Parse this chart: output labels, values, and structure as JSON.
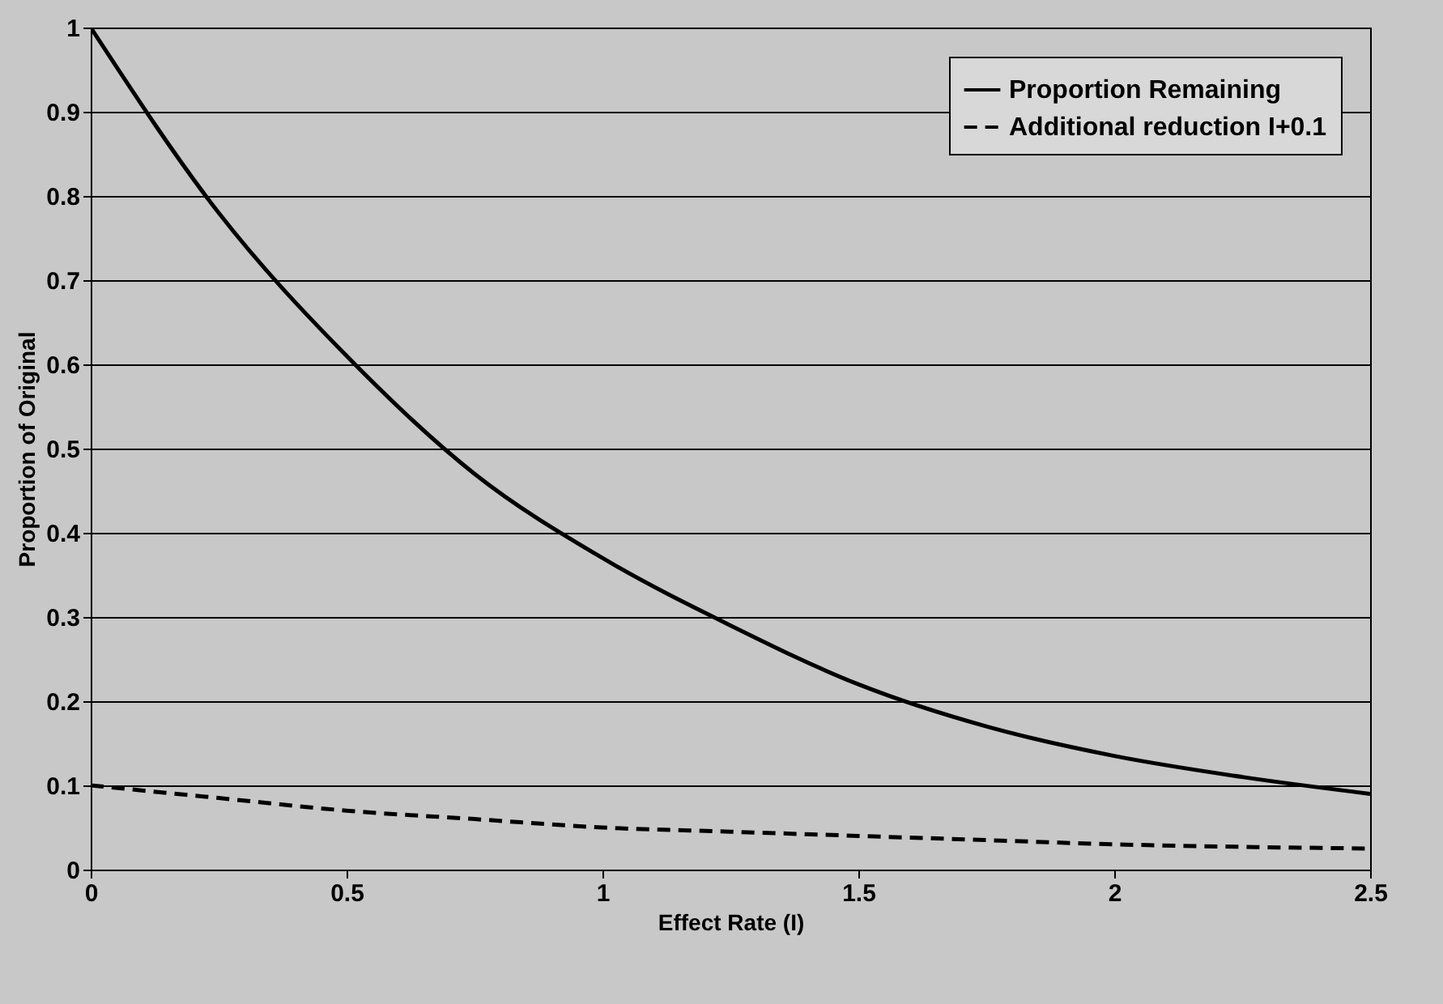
{
  "chart_data": {
    "type": "line",
    "xlabel": "Effect Rate (I)",
    "ylabel": "Proportion of Original",
    "x": [
      0,
      0.25,
      0.5,
      0.75,
      1,
      1.25,
      1.5,
      1.75,
      2,
      2.25,
      2.5
    ],
    "series": [
      {
        "name": "Proportion Remaining",
        "color": "#000000",
        "line_style": "solid",
        "values": [
          1,
          0.78,
          0.61,
          0.47,
          0.37,
          0.29,
          0.22,
          0.17,
          0.135,
          0.11,
          0.09
        ]
      },
      {
        "name": "Additional reduction I+0.1",
        "color": "#000000",
        "line_style": "dashed",
        "values": [
          0.1,
          0.085,
          0.07,
          0.06,
          0.05,
          0.045,
          0.04,
          0.035,
          0.03,
          0.027,
          0.025
        ]
      }
    ],
    "xlim": [
      0,
      2.5
    ],
    "xticks": [
      0,
      0.5,
      1,
      1.5,
      2,
      2.5
    ],
    "ylim": [
      0,
      1
    ],
    "yticks": [
      0,
      0.1,
      0.2,
      0.3,
      0.4,
      0.5,
      0.6,
      0.7,
      0.8,
      0.9,
      1
    ],
    "grid": "y",
    "legend": "top right",
    "marker": "none"
  }
}
